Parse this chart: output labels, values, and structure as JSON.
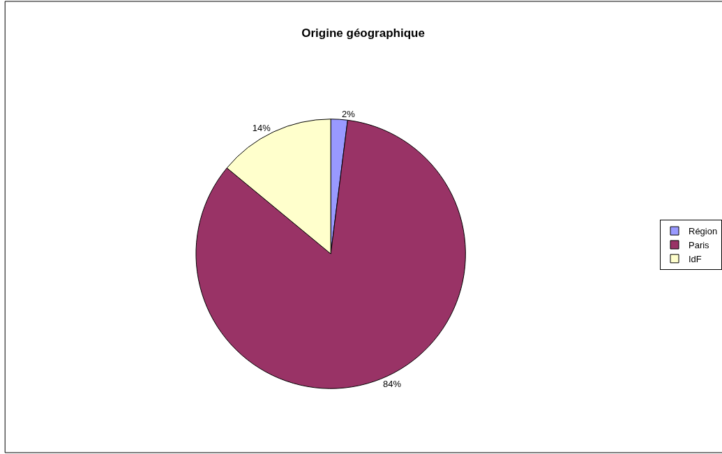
{
  "chart_data": {
    "type": "pie",
    "title": "Origine géographique",
    "categories": [
      "Région",
      "Paris",
      "IdF"
    ],
    "values": [
      2,
      84,
      14
    ],
    "colors": [
      "#9999ff",
      "#993366",
      "#ffffcc"
    ],
    "value_labels": [
      "2%",
      "84%",
      "14%"
    ],
    "legend": "right"
  }
}
